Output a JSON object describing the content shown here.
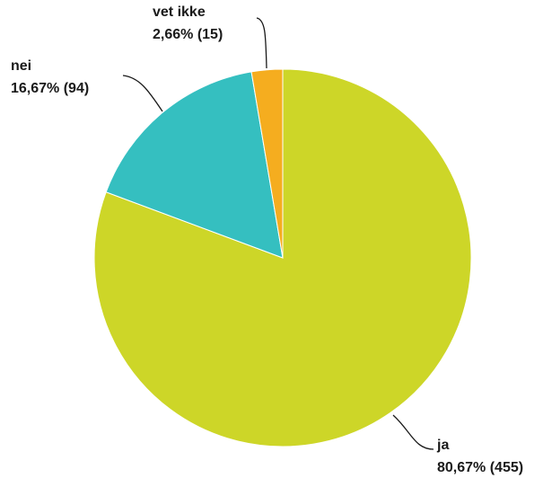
{
  "chart_data": {
    "type": "pie",
    "categories": [
      "ja",
      "nei",
      "vet ikke"
    ],
    "values": [
      80.67,
      16.67,
      2.66
    ],
    "value_labels": [
      "80,67% (455)",
      "16,67% (94)",
      "2,66% (15)"
    ],
    "colors": [
      "#cdd628",
      "#35bfc0",
      "#f5ad1f"
    ]
  }
}
